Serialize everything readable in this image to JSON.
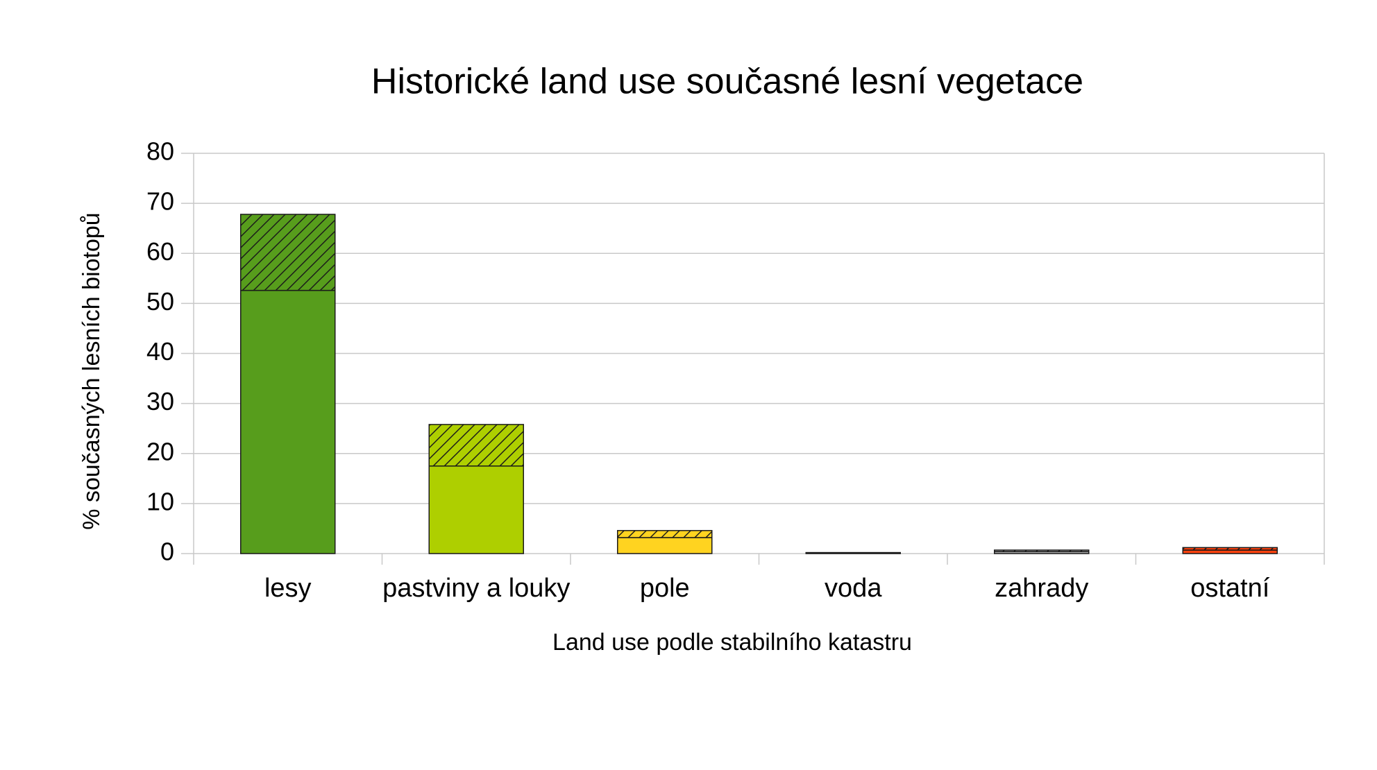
{
  "chart_data": {
    "type": "stacked-bar",
    "title": "Historické land use současné lesní vegetace",
    "x_label": "Land use podle stabilního katastru",
    "y_label": "% současných lesních biotopů",
    "categories": [
      "lesy",
      "pastviny a louky",
      "pole",
      "voda",
      "zahrady",
      "ostatní"
    ],
    "colors": [
      "#579d1c",
      "#aecf00",
      "#ffd320",
      "#004586",
      "#b3b3b3",
      "#ff420e"
    ],
    "series": [
      {
        "hatch": false,
        "values": [
          52.6,
          17.5,
          3.2,
          0.2,
          0.4,
          0.7
        ]
      },
      {
        "hatch": true,
        "values": [
          15.2,
          8.3,
          1.4,
          0,
          0.3,
          0.5
        ]
      }
    ],
    "ylim": [
      0,
      80
    ],
    "yticks": [
      0,
      10,
      20,
      30,
      40,
      50,
      60,
      70,
      80
    ],
    "grid": true
  }
}
